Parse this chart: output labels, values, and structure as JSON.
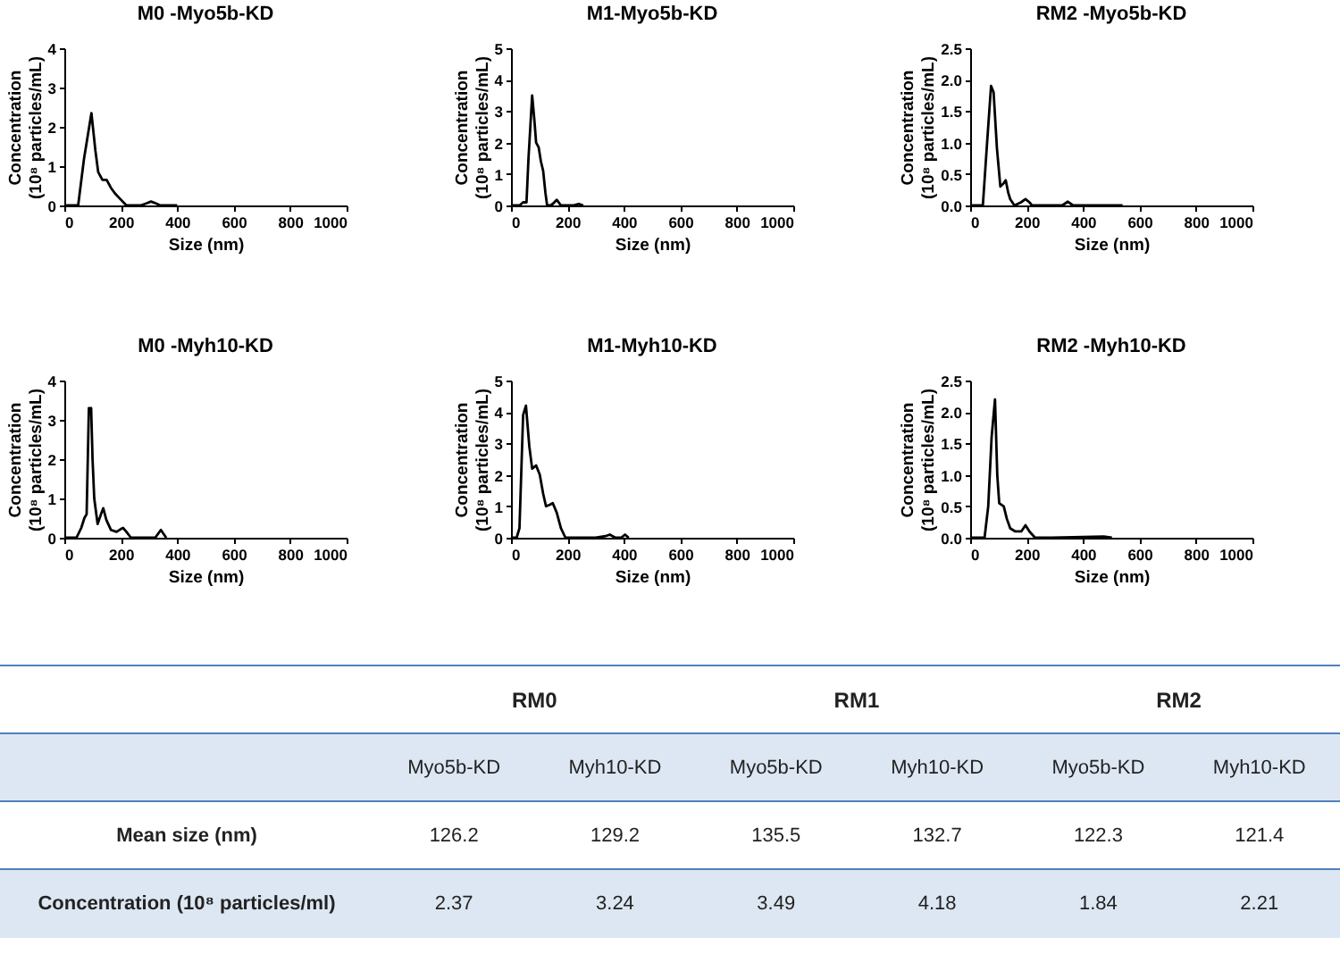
{
  "chart_data": [
    {
      "type": "line",
      "title": "M0 -Myo5b-KD",
      "xlabel": "Size (nm)",
      "ylabel": "Concentration (10⁸ particles/mL)",
      "xlim": [
        0,
        1000
      ],
      "xticks": [
        0,
        200,
        400,
        600,
        800,
        1000
      ],
      "ylim": [
        0,
        4
      ],
      "yticks": [
        0,
        1,
        2,
        3,
        4
      ],
      "grid": false,
      "x": [
        0,
        49,
        70,
        96,
        110,
        120,
        135,
        150,
        165,
        180,
        200,
        220,
        270,
        290,
        307,
        325,
        340,
        366,
        400
      ],
      "series": [
        {
          "color": "#000000",
          "values": [
            0,
            0,
            1.2,
            2.35,
            1.4,
            0.85,
            0.65,
            0.65,
            0.45,
            0.3,
            0.15,
            0,
            0,
            0.05,
            0.1,
            0.05,
            0,
            0,
            0
          ]
        }
      ]
    },
    {
      "type": "line",
      "title": "M1-Myo5b-KD",
      "xlabel": "Size (nm)",
      "ylabel": "Concentration (10⁸ particles/mL)",
      "xlim": [
        0,
        1000
      ],
      "xticks": [
        0,
        200,
        400,
        600,
        800,
        1000
      ],
      "ylim": [
        0,
        5
      ],
      "yticks": [
        0,
        1,
        2,
        3,
        4,
        5
      ],
      "grid": false,
      "x": [
        0,
        30,
        43,
        55,
        62,
        75,
        83,
        89,
        98,
        106,
        114,
        122,
        128,
        140,
        148,
        162,
        177,
        220,
        240,
        256
      ],
      "series": [
        {
          "color": "#000000",
          "values": [
            0,
            0,
            0.1,
            0.1,
            1.5,
            3.5,
            2.7,
            2.0,
            1.85,
            1.4,
            1.1,
            0.4,
            0,
            0,
            0.05,
            0.18,
            0,
            0,
            0.05,
            0
          ]
        }
      ]
    },
    {
      "type": "line",
      "title": "RM2 -Myo5b-KD",
      "xlabel": "Size (nm)",
      "ylabel": "Concentration (10⁸ particles/mL)",
      "xlim": [
        0,
        1000
      ],
      "xticks": [
        0,
        200,
        400,
        600,
        800,
        1000
      ],
      "ylim": [
        0,
        2.5
      ],
      "yticks": [
        {
          "value": 0,
          "label": "0.0"
        },
        {
          "value": 0.5,
          "label": "0.5"
        },
        {
          "value": 1,
          "label": "1.0"
        },
        {
          "value": 1.5,
          "label": "1.5"
        },
        {
          "value": 2,
          "label": "2.0"
        },
        {
          "value": 2.5,
          "label": "2.5"
        }
      ],
      "grid": false,
      "x": [
        0,
        45,
        60,
        74,
        83,
        95,
        107,
        118,
        126,
        135,
        142,
        157,
        180,
        196,
        210,
        219,
        326,
        346,
        365,
        540
      ],
      "series": [
        {
          "color": "#000000",
          "values": [
            0,
            0,
            1.0,
            1.9,
            1.8,
            0.9,
            0.3,
            0.35,
            0.4,
            0.2,
            0.1,
            0,
            0.05,
            0.1,
            0.05,
            0,
            0,
            0.06,
            0,
            0
          ]
        }
      ]
    },
    {
      "type": "line",
      "title": "M0 -Myh10-KD",
      "xlabel": "Size (nm)",
      "ylabel": "Concentration (10⁸ particles/mL)",
      "xlim": [
        0,
        1000
      ],
      "xticks": [
        0,
        200,
        400,
        600,
        800,
        1000
      ],
      "ylim": [
        0,
        4
      ],
      "yticks": [
        0,
        1,
        2,
        3,
        4
      ],
      "grid": false,
      "x": [
        0,
        43,
        60,
        71,
        79,
        87,
        95,
        100,
        106,
        118,
        130,
        138,
        149,
        165,
        185,
        200,
        208,
        220,
        236,
        322,
        342,
        361
      ],
      "series": [
        {
          "color": "#000000",
          "values": [
            0,
            0,
            0.25,
            0.5,
            0.6,
            3.3,
            3.3,
            2.0,
            1.0,
            0.35,
            0.6,
            0.75,
            0.45,
            0.2,
            0.15,
            0.22,
            0.25,
            0.15,
            0,
            0,
            0.2,
            0
          ]
        }
      ]
    },
    {
      "type": "line",
      "title": "M1-Myh10-KD",
      "xlabel": "Size (nm)",
      "ylabel": "Concentration (10⁸ particles/mL)",
      "xlim": [
        0,
        1000
      ],
      "xticks": [
        0,
        200,
        400,
        600,
        800,
        1000
      ],
      "ylim": [
        0,
        5
      ],
      "yticks": [
        0,
        1,
        2,
        3,
        4,
        5
      ],
      "grid": false,
      "x": [
        0,
        20,
        30,
        43,
        53,
        65,
        75,
        89,
        102,
        114,
        124,
        138,
        148,
        162,
        177,
        193,
        300,
        335,
        350,
        370,
        390,
        404,
        417
      ],
      "series": [
        {
          "color": "#000000",
          "values": [
            0,
            0,
            0.3,
            3.9,
            4.2,
            2.9,
            2.2,
            2.3,
            2.0,
            1.4,
            1.0,
            1.05,
            1.1,
            0.8,
            0.3,
            0,
            0,
            0.05,
            0.1,
            0,
            0,
            0.1,
            0
          ]
        }
      ]
    },
    {
      "type": "line",
      "title": "RM2 -Myh10-KD",
      "xlabel": "Size (nm)",
      "ylabel": "Concentration (10⁸ particles/mL)",
      "xlim": [
        0,
        1000
      ],
      "xticks": [
        0,
        200,
        400,
        600,
        800,
        1000
      ],
      "ylim": [
        0,
        2.5
      ],
      "yticks": [
        {
          "value": 0,
          "label": "0.0"
        },
        {
          "value": 0.5,
          "label": "0.5"
        },
        {
          "value": 1,
          "label": "1.0"
        },
        {
          "value": 1.5,
          "label": "1.5"
        },
        {
          "value": 2,
          "label": "2.0"
        },
        {
          "value": 2.5,
          "label": "2.5"
        }
      ],
      "grid": false,
      "x": [
        0,
        51,
        64,
        76,
        88,
        96,
        103,
        119,
        130,
        142,
        160,
        181,
        196,
        210,
        230,
        288,
        473,
        502
      ],
      "series": [
        {
          "color": "#000000",
          "values": [
            0,
            0,
            0.5,
            1.6,
            2.2,
            1.0,
            0.55,
            0.5,
            0.3,
            0.15,
            0.1,
            0.1,
            0.2,
            0.1,
            0,
            0,
            0.02,
            0
          ]
        }
      ]
    },
    {
      "type": "other",
      "annotations": [
        "RM0",
        "RM1",
        "RM2",
        "Myo5b-KD",
        "Myh10-KD",
        "Myo5b-KD",
        "Myh10-KD",
        "Myo5b-KD",
        "Myh10-KD",
        "Mean size (nm)",
        "126.2",
        "129.2",
        "135.5",
        "132.7",
        "122.3",
        "121.4",
        "Concentration (10⁸ particles/ml)",
        "2.37",
        "3.24",
        "3.49",
        "4.18",
        "1.84",
        "2.21"
      ]
    }
  ]
}
